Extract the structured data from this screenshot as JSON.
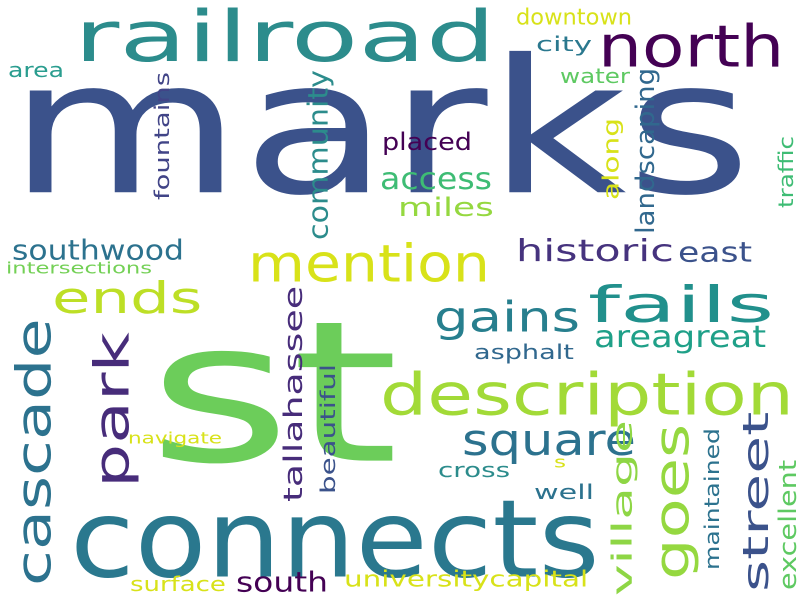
{
  "words": [
    {
      "text": "marks",
      "color": "#3b528b",
      "orient": "h"
    },
    {
      "text": "st",
      "color": "#6ccd5a",
      "orient": "h"
    },
    {
      "text": "connects",
      "color": "#2a788e",
      "orient": "h"
    },
    {
      "text": "railroad",
      "color": "#2c8c8c",
      "orient": "h"
    },
    {
      "text": "north",
      "color": "#440154",
      "orient": "h"
    },
    {
      "text": "description",
      "color": "#a2da37",
      "orient": "h"
    },
    {
      "text": "mention",
      "color": "#d8e219",
      "orient": "h"
    },
    {
      "text": "fails",
      "color": "#21908c",
      "orient": "h"
    },
    {
      "text": "ends",
      "color": "#bddf26",
      "orient": "h"
    },
    {
      "text": "cascade",
      "color": "#2c728e",
      "orient": "v"
    },
    {
      "text": "park",
      "color": "#472c7a",
      "orient": "v"
    },
    {
      "text": "goes",
      "color": "#95d840",
      "orient": "v"
    },
    {
      "text": "square",
      "color": "#2c728e",
      "orient": "h"
    },
    {
      "text": "street",
      "color": "#3b528b",
      "orient": "v"
    },
    {
      "text": "gains",
      "color": "#277f8e",
      "orient": "h"
    },
    {
      "text": "areagreat",
      "color": "#1fa088",
      "orient": "h"
    },
    {
      "text": "community",
      "color": "#2c8c8c",
      "orient": "v"
    },
    {
      "text": "access",
      "color": "#3ebc74",
      "orient": "h"
    },
    {
      "text": "miles",
      "color": "#95d840",
      "orient": "h"
    },
    {
      "text": "southwood",
      "color": "#2c728e",
      "orient": "h"
    },
    {
      "text": "historic",
      "color": "#46337e",
      "orient": "h"
    },
    {
      "text": "east",
      "color": "#3b528b",
      "orient": "h"
    },
    {
      "text": "tallahassee",
      "color": "#472c7a",
      "orient": "v"
    },
    {
      "text": "village",
      "color": "#8ed645",
      "orient": "v"
    },
    {
      "text": "south",
      "color": "#440154",
      "orient": "h"
    },
    {
      "text": "universitycapital",
      "color": "#d8e219",
      "orient": "h"
    },
    {
      "text": "landscaping",
      "color": "#31688e",
      "orient": "v"
    },
    {
      "text": "placed",
      "color": "#440154",
      "orient": "h"
    },
    {
      "text": "fountains",
      "color": "#414487",
      "orient": "v"
    },
    {
      "text": "downtown",
      "color": "#d8e219",
      "orient": "h"
    },
    {
      "text": "city",
      "color": "#2a788e",
      "orient": "h"
    },
    {
      "text": "water",
      "color": "#5ec962",
      "orient": "h"
    },
    {
      "text": "along",
      "color": "#d8e219",
      "orient": "v"
    },
    {
      "text": "traffic",
      "color": "#3ebc74",
      "orient": "v"
    },
    {
      "text": "area",
      "color": "#2a9d8f",
      "orient": "h"
    },
    {
      "text": "asphalt",
      "color": "#31688e",
      "orient": "h"
    },
    {
      "text": "beautiful",
      "color": "#3b528b",
      "orient": "v"
    },
    {
      "text": "cross",
      "color": "#2c8c8c",
      "orient": "h"
    },
    {
      "text": "well",
      "color": "#2c728e",
      "orient": "h"
    },
    {
      "text": "maintained",
      "color": "#2c728e",
      "orient": "v"
    },
    {
      "text": "excellent",
      "color": "#5ec962",
      "orient": "v"
    },
    {
      "text": "surface",
      "color": "#d8e219",
      "orient": "h"
    },
    {
      "text": "navigate",
      "color": "#d8e219",
      "orient": "h"
    },
    {
      "text": "intersections",
      "color": "#73d055",
      "orient": "h"
    },
    {
      "text": "s",
      "color": "#d8e219",
      "orient": "h"
    }
  ]
}
